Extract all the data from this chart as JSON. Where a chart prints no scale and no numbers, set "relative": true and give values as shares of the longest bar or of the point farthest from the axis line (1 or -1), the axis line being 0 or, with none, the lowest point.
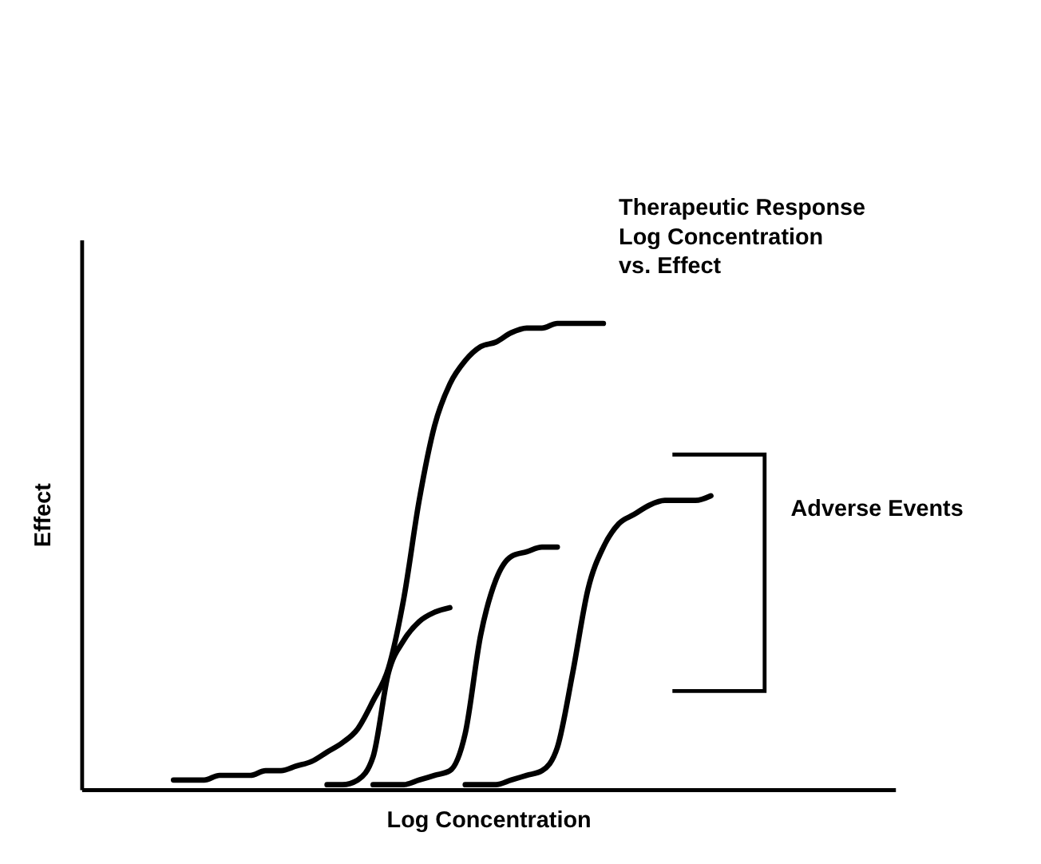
{
  "chart_data": {
    "type": "line",
    "relative": true,
    "xlabel": "Log Concentration",
    "ylabel": "Effect",
    "categories": [
      null,
      null,
      null,
      null,
      null,
      null,
      null,
      null,
      null,
      null,
      null,
      null,
      null,
      null,
      null,
      null,
      null,
      null,
      null,
      null,
      null,
      null,
      null,
      null,
      null,
      null,
      null,
      null,
      null,
      null,
      null,
      null,
      null,
      null,
      null,
      null,
      null,
      null,
      null,
      null,
      null,
      null,
      null,
      null,
      null,
      null,
      null,
      null,
      null,
      null,
      null,
      null,
      null,
      null
    ],
    "series": [
      {
        "color": "#000000",
        "values": [
          null,
          null,
          null,
          null,
          null,
          null,
          0.02,
          0.02,
          0.02,
          0.03,
          0.03,
          0.03,
          0.04,
          0.04,
          0.05,
          0.06,
          0.08,
          0.1,
          0.13,
          0.19,
          0.26,
          0.41,
          0.62,
          0.78,
          0.87,
          0.92,
          0.95,
          0.96,
          0.98,
          0.99,
          0.99,
          1.0,
          1.0,
          1.0,
          1.0,
          null,
          null,
          null,
          null,
          null,
          null,
          null,
          null,
          null,
          null,
          null,
          null,
          null,
          null,
          null,
          null,
          null,
          null,
          null
        ]
      },
      {
        "color": "#000000",
        "values": [
          null,
          null,
          null,
          null,
          null,
          null,
          null,
          null,
          null,
          null,
          null,
          null,
          null,
          null,
          null,
          null,
          0.01,
          0.01,
          0.02,
          0.07,
          0.25,
          0.32,
          0.36,
          0.38,
          0.39,
          null,
          null,
          null,
          null,
          null,
          null,
          null,
          null,
          null,
          null,
          null,
          null,
          null,
          null,
          null,
          null,
          null,
          null,
          null,
          null,
          null,
          null,
          null,
          null,
          null,
          null,
          null,
          null,
          null
        ]
      },
      {
        "color": "#000000",
        "values": [
          null,
          null,
          null,
          null,
          null,
          null,
          null,
          null,
          null,
          null,
          null,
          null,
          null,
          null,
          null,
          null,
          null,
          null,
          null,
          0.01,
          0.01,
          0.01,
          0.02,
          0.03,
          0.04,
          0.12,
          0.33,
          0.45,
          0.5,
          0.51,
          0.52,
          0.52,
          null,
          null,
          null,
          null,
          null,
          null,
          null,
          null,
          null,
          null,
          null,
          null,
          null,
          null,
          null,
          null,
          null,
          null,
          null,
          null,
          null,
          null
        ]
      },
      {
        "color": "#000000",
        "values": [
          null,
          null,
          null,
          null,
          null,
          null,
          null,
          null,
          null,
          null,
          null,
          null,
          null,
          null,
          null,
          null,
          null,
          null,
          null,
          null,
          null,
          null,
          null,
          null,
          null,
          0.01,
          0.01,
          0.01,
          0.02,
          0.03,
          0.04,
          0.09,
          0.25,
          0.43,
          0.52,
          0.57,
          0.59,
          0.61,
          0.62,
          0.62,
          0.62,
          0.63,
          null,
          null,
          null,
          null,
          null,
          null,
          null,
          null,
          null,
          null,
          null,
          null
        ]
      }
    ],
    "annotations": [
      "Therapeutic Response\nLog Concentration\nvs. Effect",
      "Adverse Events"
    ],
    "legend": false,
    "grid": false,
    "marker": "none",
    "line_style": "solid"
  }
}
